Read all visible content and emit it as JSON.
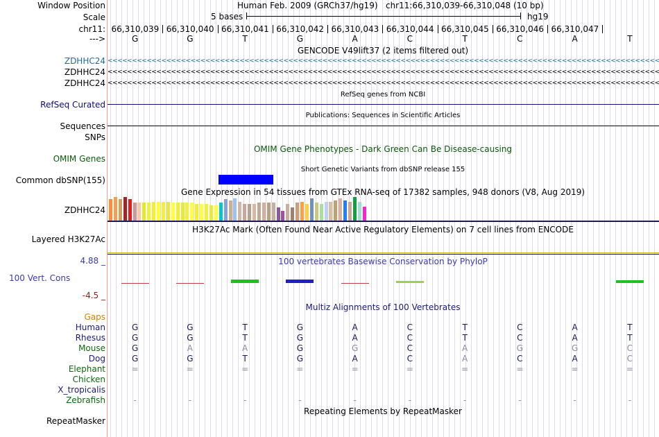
{
  "header": {
    "window_position_label": "Window Position",
    "assembly": "Human Feb. 2009 (GRCh37/hg19)",
    "position": "chr11:66,310,039-66,310,048 (10 bp)",
    "scale_label": "Scale",
    "scale_value": "5 bases",
    "scale_assembly": "hg19",
    "chrom_label": "chr11:",
    "strand_label": "--->",
    "coordinates": [
      "66,310,039",
      "66,310,040",
      "66,310,041",
      "66,310,042",
      "66,310,043",
      "66,310,044",
      "66,310,045",
      "66,310,046",
      "66,310,047"
    ],
    "bases": [
      "G",
      "G",
      "T",
      "G",
      "A",
      "C",
      "T",
      "C",
      "A",
      "T"
    ]
  },
  "gencode": {
    "title": "GENCODE V49lift37 (2 items filtered out)",
    "genes": [
      "ZDHHC24",
      "ZDHHC24",
      "ZDHHC24"
    ],
    "arrows": "<<<<<<<<<<<<<<<<<<<<<<<<<<<<<<<<<<<<<<<<<<<<<<<<<<<<<<<<<<<<<<<<<<<<<<<<<<<<<<<<<<<<<<<<<<<<<<<<<<<<<<<<<<<<<<<<<<<<<<<<<<<<<<<<<<<<<<<<<<<<<<<<<<<<<<<<<<<<<<<<<<<<<<<<<<<<<<<<<<<<<<<<<<<<<<<<<<<<<<<<<<<<<<<<<<<<<<<<<<<<<<<<<<<<<<<<<<<<<<<<<<<<<<<<<<<<<<<<<<<<<<<<<<<<<<<<<<<<<<<<<<<<<",
    "gene_color": "#1a6ea0"
  },
  "refseq": {
    "title": "RefSeq genes from NCBI",
    "label": "RefSeq Curated",
    "color": "#0c0c78"
  },
  "publications": {
    "title": "Publications: Sequences in Scientific Articles",
    "label": "Sequences"
  },
  "snps": {
    "label": "SNPs"
  },
  "omim": {
    "title": "OMIM Gene Phenotypes - Dark Green Can Be Disease-causing",
    "label": "OMIM Genes",
    "color": "#0c5a0c"
  },
  "dbsnp": {
    "title": "Short Genetic Variants from dbSNP release 155",
    "label": "Common dbSNP(155)",
    "variant_color": "#0000ff"
  },
  "gtex": {
    "title": "Gene Expression in 54 tissues from GTEx RNA-seq of 17382 samples, 948 donors (V8, Aug 2019)",
    "label": "ZDHHC24",
    "levels": [
      0.9,
      1.0,
      0.9,
      1.0,
      0.9,
      0.75,
      0.75,
      0.75,
      0.75,
      0.8,
      0.8,
      0.8,
      0.8,
      0.75,
      0.75,
      0.75,
      0.75,
      0.75,
      0.7,
      0.7,
      0.7,
      0.65,
      0.65,
      0.75,
      0.9,
      0.85,
      0.95,
      0.8,
      0.7,
      0.7,
      0.7,
      0.75,
      0.75,
      0.75,
      0.75,
      0.55,
      0.4,
      0.7,
      0.55,
      0.75,
      0.8,
      0.7,
      0.95,
      0.75,
      0.7,
      0.8,
      0.8,
      0.85,
      0.95,
      0.85,
      0.8,
      1.0,
      0.8,
      0.6
    ],
    "colors": [
      "#ff8c3a",
      "#f0a050",
      "#d0a060",
      "#9a2a2a",
      "#e02020",
      "#cc9999",
      "#f8c8a8",
      "#e6e62a",
      "#f0f040",
      "#f0f030",
      "#ffff30",
      "#f0f040",
      "#e8e840",
      "#ffff40",
      "#f0f030",
      "#e8e840",
      "#f0f040",
      "#ffff40",
      "#f0f030",
      "#ffff40",
      "#f0f040",
      "#e8e840",
      "#ffff40",
      "#00c8c8",
      "#88a0e0",
      "#c8b090",
      "#a0c0f0",
      "#d0b8a8",
      "#c8a898",
      "#b8a090",
      "#d8b8a0",
      "#c0a898",
      "#d0b0a0",
      "#b8a080",
      "#c8b0a0",
      "#8a5aa0",
      "#a050a0",
      "#c8b0a0",
      "#a08070",
      "#c8a080",
      "#ffa040",
      "#ffd040",
      "#7090c0",
      "#c8c880",
      "#a8e0a0",
      "#c0d0f0",
      "#d8c0a0",
      "#c0a070",
      "#e0b0a0",
      "#2080ff",
      "#c8a898",
      "#10a040",
      "#a0e0d0",
      "#ff20d0"
    ]
  },
  "h3k27ac": {
    "title": "H3K27Ac Mark (Often Found Near Active Regulatory Elements) on 7 cell lines from ENCODE",
    "label": "Layered H3K27Ac",
    "line_color": "#c8b400"
  },
  "phylop": {
    "title": "100 vertebrates Basewise Conservation by PhyloP",
    "label": "100 Vert. Cons",
    "max_label": "4.88 _",
    "min_label": "-4.5 _",
    "scores": [
      -0.4,
      -0.3,
      1.5,
      1.8,
      -0.3,
      0.9,
      0.0,
      0.0,
      0.0,
      1.2
    ],
    "label_color": "#3a3ab0",
    "min_color": "#8b2020"
  },
  "multiz": {
    "title": "Multiz Alignments of 100 Vertebrates",
    "title_color": "#1a1a7a",
    "gaps_label": "Gaps",
    "gaps_color": "#d88000",
    "species": [
      {
        "name": "Human",
        "color": "#1a1a7a",
        "bases": [
          "G",
          "G",
          "T",
          "G",
          "A",
          "C",
          "T",
          "C",
          "A",
          "T"
        ],
        "dim": [
          0,
          0,
          0,
          0,
          0,
          0,
          0,
          0,
          0,
          0
        ]
      },
      {
        "name": "Rhesus",
        "color": "#1a1a7a",
        "bases": [
          "G",
          "G",
          "T",
          "G",
          "A",
          "C",
          "T",
          "C",
          "A",
          "T"
        ],
        "dim": [
          0,
          0,
          0,
          0,
          0,
          0,
          0,
          0,
          0,
          0
        ]
      },
      {
        "name": "Mouse",
        "color": "#0c6a0c",
        "bases": [
          "G",
          "A",
          "A",
          "G",
          "G",
          "C",
          "A",
          "G",
          "G",
          "C"
        ],
        "dim": [
          0,
          1,
          1,
          0,
          1,
          0,
          1,
          1,
          1,
          1
        ]
      },
      {
        "name": "Dog",
        "color": "#1a1a7a",
        "bases": [
          "G",
          "G",
          "T",
          "G",
          "A",
          "C",
          "A",
          "C",
          "A",
          "C"
        ],
        "dim": [
          0,
          0,
          0,
          0,
          0,
          0,
          1,
          0,
          0,
          1
        ]
      },
      {
        "name": "Elephant",
        "color": "#0c6a0c",
        "bases": [
          "=",
          "=",
          "=",
          "=",
          "=",
          "=",
          "=",
          "=",
          "=",
          "="
        ],
        "dim": [
          1,
          1,
          1,
          1,
          1,
          1,
          1,
          1,
          1,
          1
        ]
      },
      {
        "name": "Chicken",
        "color": "#0c6a0c",
        "bases": [
          "",
          "",
          "",
          "",
          "",
          "",
          "",
          "",
          "",
          ""
        ],
        "dim": [
          0,
          0,
          0,
          0,
          0,
          0,
          0,
          0,
          0,
          0
        ]
      },
      {
        "name": "X_tropicalis",
        "color": "#1a1a7a",
        "bases": [
          "",
          "",
          "",
          "",
          "",
          "",
          "",
          "",
          "",
          ""
        ],
        "dim": [
          0,
          0,
          0,
          0,
          0,
          0,
          0,
          0,
          0,
          0
        ]
      },
      {
        "name": "Zebrafish",
        "color": "#0c6a0c",
        "bases": [
          "-",
          "-",
          "-",
          "-",
          "-",
          "-",
          "-",
          "-",
          "-",
          "-"
        ],
        "dim": [
          1,
          1,
          1,
          1,
          1,
          1,
          1,
          1,
          1,
          1
        ]
      }
    ]
  },
  "repeatmasker": {
    "title": "Repeating Elements by RepeatMasker",
    "label": "RepeatMasker"
  }
}
